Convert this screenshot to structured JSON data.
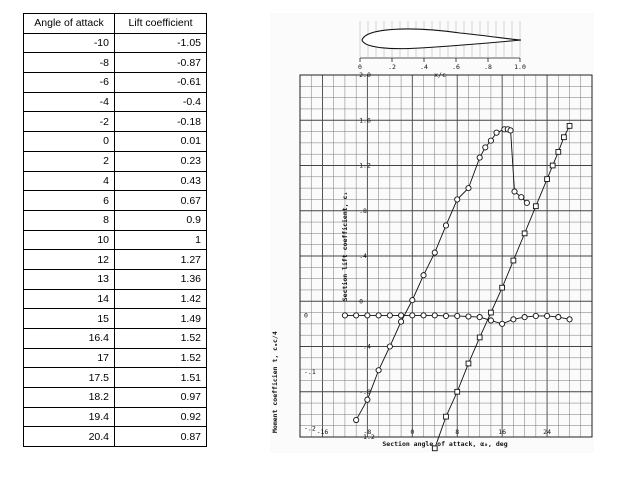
{
  "table": {
    "headers": [
      "Angle of attack",
      "Lift coefficient"
    ],
    "rows": [
      [
        "-10",
        "-1.05"
      ],
      [
        "-8",
        "-0.87"
      ],
      [
        "-6",
        "-0.61"
      ],
      [
        "-4",
        "-0.4"
      ],
      [
        "-2",
        "-0.18"
      ],
      [
        "0",
        "0.01"
      ],
      [
        "2",
        "0.23"
      ],
      [
        "4",
        "0.43"
      ],
      [
        "6",
        "0.67"
      ],
      [
        "8",
        "0.9"
      ],
      [
        "10",
        "1"
      ],
      [
        "12",
        "1.27"
      ],
      [
        "13",
        "1.36"
      ],
      [
        "14",
        "1.42"
      ],
      [
        "15",
        "1.49"
      ],
      [
        "16.4",
        "1.52"
      ],
      [
        "17",
        "1.52"
      ],
      [
        "17.5",
        "1.51"
      ],
      [
        "18.2",
        "0.97"
      ],
      [
        "19.4",
        "0.92"
      ],
      [
        "20.4",
        "0.87"
      ]
    ]
  },
  "figure": {
    "x_axis_label": "Section angle of attack, α₀, deg",
    "y_axis_label": "Section lift coefficient, c₁",
    "moment_axis_label": "Moment coefficien t, cₘc/4",
    "airfoil_axis_label": "x/c",
    "airfoil_ticks": [
      "0",
      ".2",
      ".4",
      ".6",
      ".8",
      "1.0"
    ],
    "cl_ticks": [
      "2.0",
      "1.6",
      "1.2",
      ".8",
      ".4",
      "0",
      "-.4",
      "-.8",
      "-1.2"
    ],
    "x_ticks": [
      "-16",
      "-8",
      "0",
      "8",
      "16",
      "24"
    ],
    "moment_ticks": [
      "0",
      "-.1",
      "-.2"
    ]
  },
  "chart_data": {
    "type": "line",
    "xlabel": "Section angle of attack, α₀, deg",
    "ylabel": "Section lift coefficient, c₁",
    "xlim": [
      -20,
      32
    ],
    "ylim": [
      -1.2,
      2.0
    ],
    "grid": true,
    "series": [
      {
        "name": "Lift coefficient",
        "marker": "circle",
        "x": [
          -10,
          -8,
          -6,
          -4,
          -2,
          0,
          2,
          4,
          6,
          8,
          10,
          12,
          13,
          14,
          15,
          16.4,
          17,
          17.5,
          18.2,
          19.4,
          20.4
        ],
        "y": [
          -1.05,
          -0.87,
          -0.61,
          -0.4,
          -0.18,
          0.01,
          0.23,
          0.43,
          0.67,
          0.9,
          1.0,
          1.27,
          1.36,
          1.42,
          1.49,
          1.52,
          1.52,
          1.51,
          0.97,
          0.92,
          0.87
        ]
      },
      {
        "marker": "square",
        "x": [
          4,
          6,
          8,
          10,
          12,
          14,
          16,
          18,
          20,
          22,
          24,
          25,
          26,
          27,
          28
        ],
        "y": [
          -1.3,
          -1.02,
          -0.8,
          -0.55,
          -0.32,
          -0.1,
          0.12,
          0.36,
          0.6,
          0.84,
          1.08,
          1.2,
          1.32,
          1.45,
          1.55
        ]
      },
      {
        "marker": "circle",
        "x": [
          -12,
          -10,
          -8,
          -6,
          -4,
          -2,
          0,
          2,
          4,
          6,
          8,
          10,
          12,
          14,
          16,
          18,
          20,
          22,
          24,
          26,
          28
        ],
        "y": [
          -0.125,
          -0.125,
          -0.125,
          -0.125,
          -0.125,
          -0.125,
          -0.125,
          -0.125,
          -0.125,
          -0.13,
          -0.13,
          -0.135,
          -0.14,
          -0.17,
          -0.2,
          -0.16,
          -0.14,
          -0.13,
          -0.13,
          -0.14,
          -0.16
        ]
      }
    ],
    "airfoil": {
      "xlim": [
        0,
        1.0
      ]
    }
  }
}
